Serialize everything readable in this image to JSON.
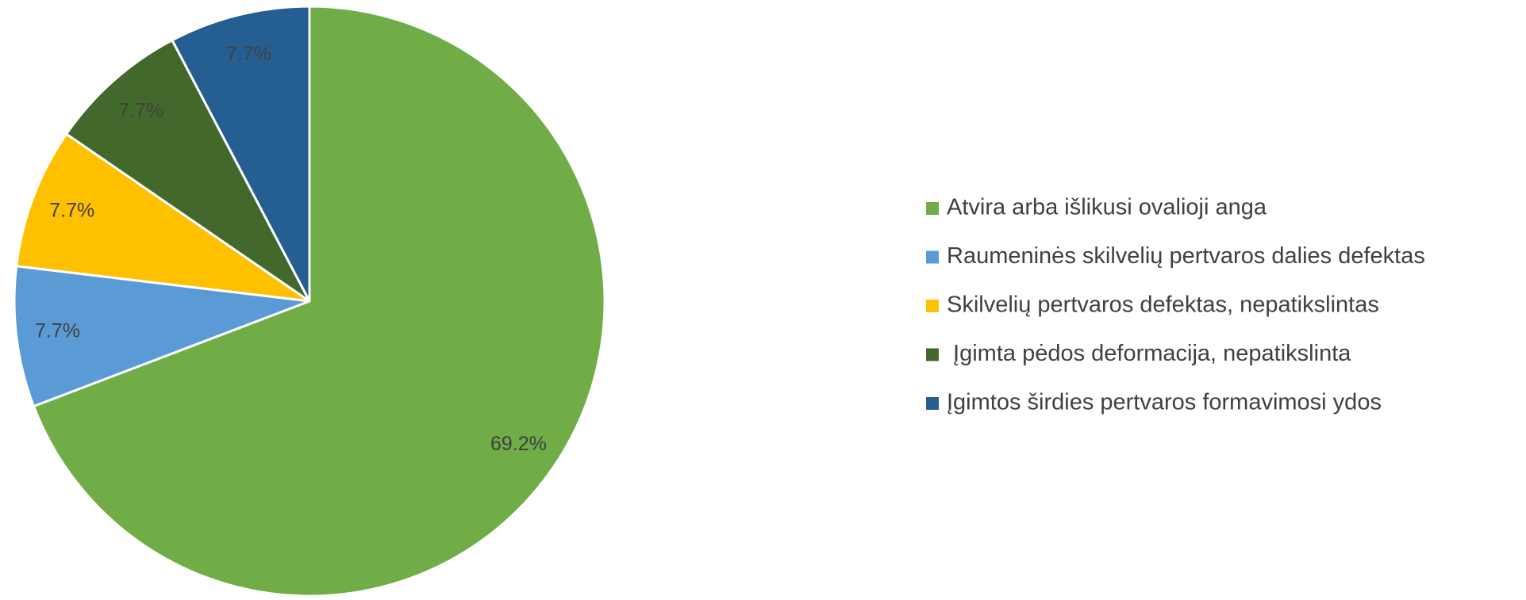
{
  "chart_data": {
    "type": "pie",
    "categories": [
      "Atvira arba išlikusi ovalioji anga",
      "Raumeninės skilvelių pertvaros dalies defektas",
      "Skilvelių pertvaros defektas, nepatikslintas",
      " Įgimta pėdos deformacija, nepatikslinta",
      "Įgimtos širdies pertvaros formavimosi ydos"
    ],
    "values": [
      69.2,
      7.7,
      7.7,
      7.7,
      7.7
    ],
    "value_labels": [
      "69.2%",
      "7.7%",
      "7.7%",
      "7.7%",
      "7.7%"
    ],
    "colors": [
      "#70ad47",
      "#5b9bd5",
      "#ffc000",
      "#43682b",
      "#255e91"
    ],
    "legend": "right"
  }
}
